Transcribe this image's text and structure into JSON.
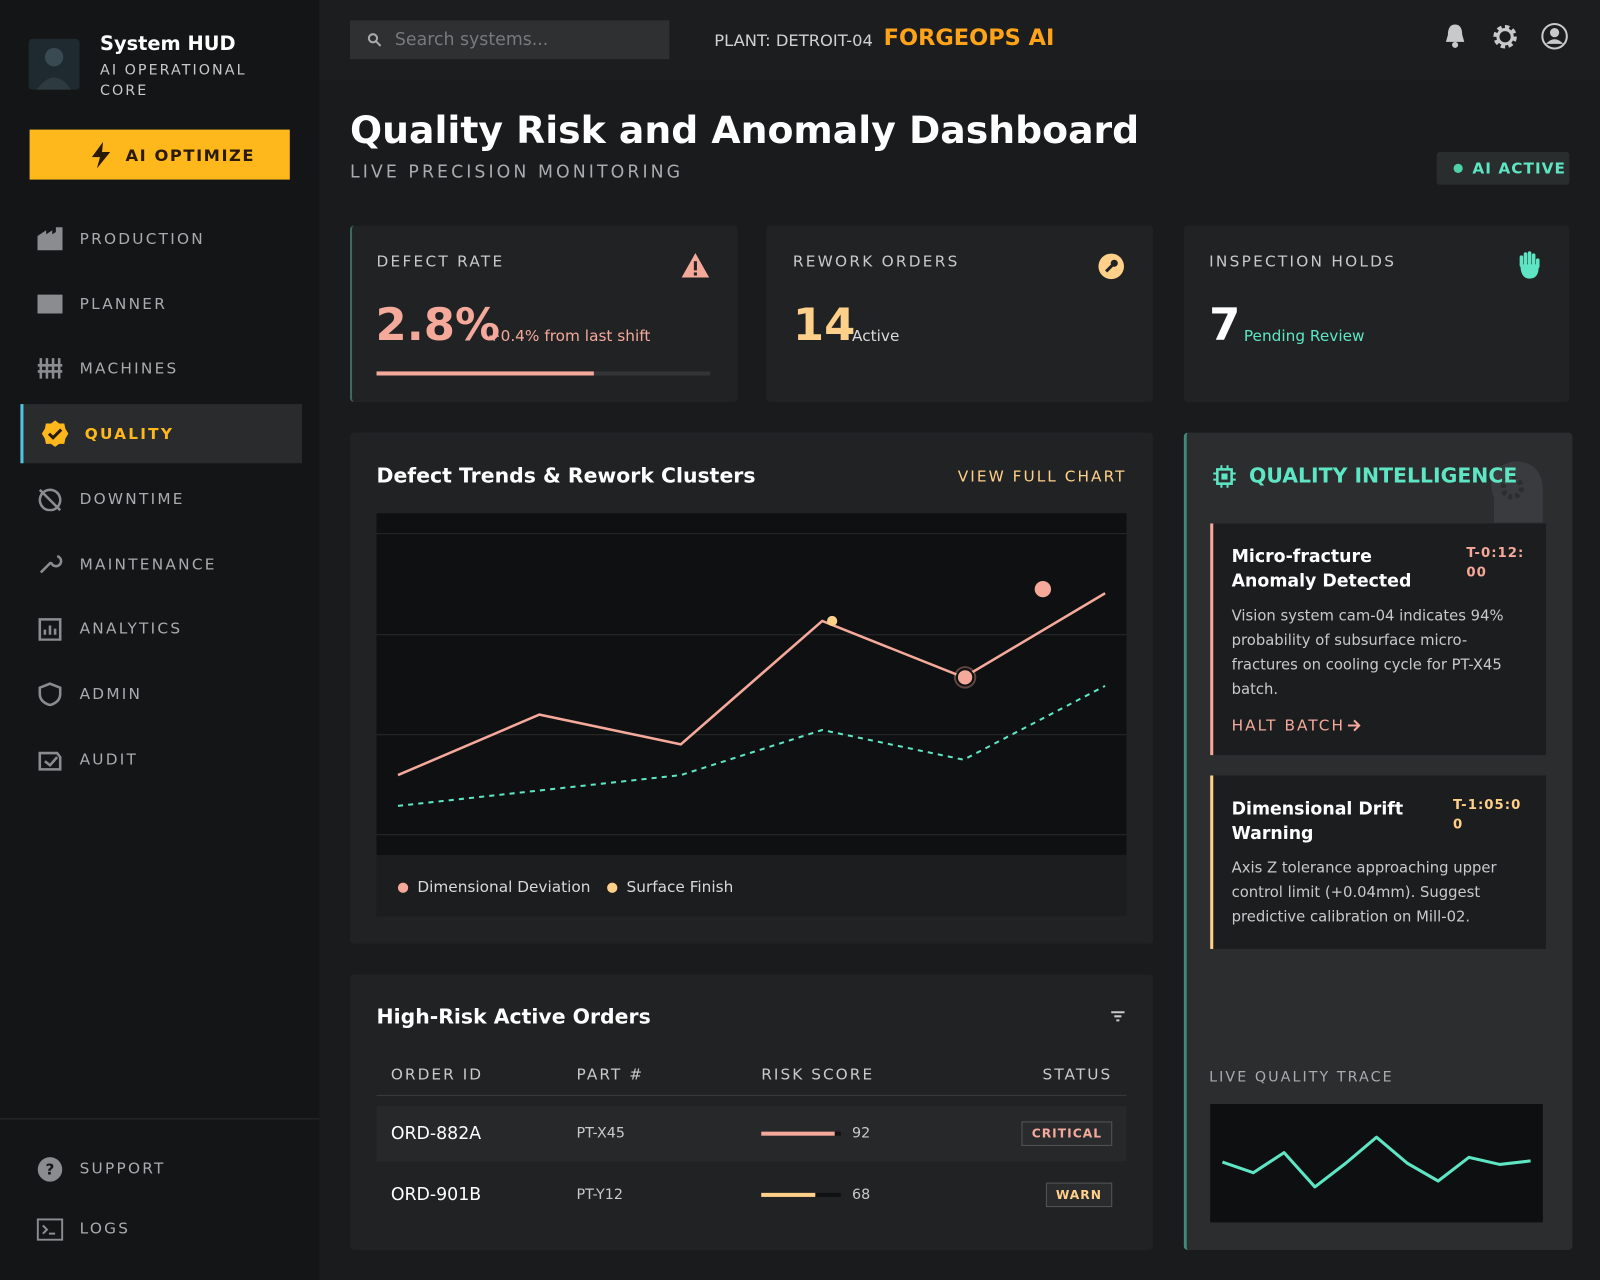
{
  "sidebar": {
    "title": "System HUD",
    "subtitle": "AI OPERATIONAL CORE",
    "action": "AI OPTIMIZE",
    "nav": [
      "PRODUCTION",
      "PLANNER",
      "MACHINES",
      "QUALITY",
      "DOWNTIME",
      "MAINTENANCE",
      "ANALYTICS",
      "ADMIN",
      "AUDIT"
    ],
    "active_index": 3,
    "footer": [
      "SUPPORT",
      "LOGS"
    ]
  },
  "topbar": {
    "search_placeholder": "Search systems...",
    "plant": "PLANT: DETROIT-04",
    "brand": "FORGEOPS AI"
  },
  "header": {
    "title": "Quality Risk and Anomaly Dashboard",
    "subtitle": "LIVE PRECISION MONITORING",
    "status": "AI ACTIVE"
  },
  "kpis": [
    {
      "label": "DEFECT RATE",
      "value": "2.8%",
      "note": "+0.4% from last shift",
      "progress": 65
    },
    {
      "label": "REWORK ORDERS",
      "value": "14",
      "note": "Active"
    },
    {
      "label": "INSPECTION HOLDS",
      "value": "7",
      "note": "Pending Review"
    }
  ],
  "trend_chart": {
    "type": "line",
    "title": "Defect Trends & Rework Clusters",
    "action": "VIEW FULL CHART",
    "x": [
      0,
      1,
      2,
      3,
      4,
      5
    ],
    "xlim": [
      0,
      5
    ],
    "ylim": [
      0,
      100
    ],
    "series": [
      {
        "name": "Dimensional Deviation",
        "color": "#f4a99b",
        "legend_color": "#f4a99b",
        "dashed": false,
        "values": [
          23.4,
          41.1,
          32.4,
          68.5,
          52,
          76.6
        ]
      },
      {
        "name": "Surface Finish",
        "color": "#5ee6c4",
        "legend_color": "#ffd08a",
        "dashed": true,
        "values": [
          14.4,
          18.9,
          23.4,
          36.6,
          27.9,
          49.5
        ]
      }
    ],
    "clusters": [
      {
        "x": 3.07,
        "y": 68.5,
        "color": "#ffd08a"
      },
      {
        "x": 4.01,
        "y": 52,
        "color": "#f4a99b"
      },
      {
        "x": 4.56,
        "y": 77.8,
        "color": "#f4a99b"
      }
    ]
  },
  "orders": {
    "title": "High-Risk Active Orders",
    "columns": [
      "ORDER ID",
      "PART #",
      "RISK SCORE",
      "STATUS"
    ],
    "risk_scale": [
      0,
      100
    ],
    "rows": [
      {
        "id": "ORD-882A",
        "part": "PT-X45",
        "risk": 92,
        "status": "CRITICAL",
        "color": "#f4a99b"
      },
      {
        "id": "ORD-901B",
        "part": "PT-Y12",
        "risk": 68,
        "status": "WARN",
        "color": "#ffd08a"
      }
    ]
  },
  "intelligence": {
    "title": "QUALITY INTELLIGENCE",
    "alerts": [
      {
        "title": "Micro-fracture Anomaly Detected",
        "time": "T-0:12:00",
        "body": "Vision system cam-04 indicates 94% probability of subsurface micro-fractures on cooling cycle for PT-X45 batch.",
        "action": "HALT BATCH"
      },
      {
        "title": "Dimensional Drift Warning",
        "time": "T-1:05:00",
        "body": "Axis Z tolerance approaching upper control limit (+0.04mm). Suggest predictive calibration on Mill-02."
      }
    ],
    "trace_label": "LIVE QUALITY TRACE",
    "trace": {
      "ylim": [
        0,
        100
      ],
      "color": "#5ee6c4",
      "values": [
        51,
        42,
        59,
        30,
        50,
        72,
        50,
        35,
        55,
        49,
        52
      ]
    }
  }
}
